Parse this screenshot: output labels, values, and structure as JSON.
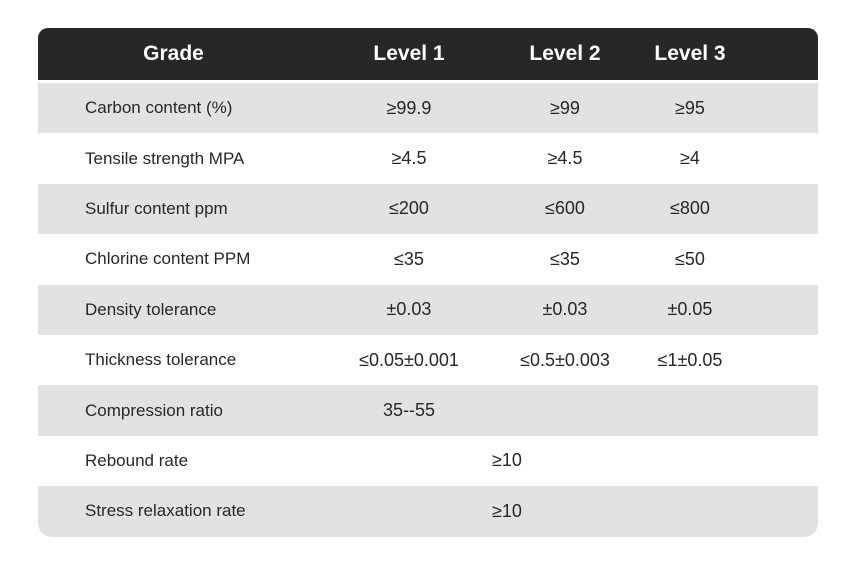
{
  "chart_data": {
    "type": "table",
    "columns": [
      "Grade",
      "Level 1",
      "Level 2",
      "Level 3"
    ],
    "rows": [
      {
        "label": "Carbon content (%)",
        "level1": "≥99.9",
        "level2": "≥99",
        "level3": "≥95"
      },
      {
        "label": "Tensile strength MPA",
        "level1": "≥4.5",
        "level2": "≥4.5",
        "level3": "≥4"
      },
      {
        "label": "Sulfur content ppm",
        "level1": "≤200",
        "level2": "≤600",
        "level3": "≤800"
      },
      {
        "label": "Chlorine content PPM",
        "level1": "≤35",
        "level2": "≤35",
        "level3": "≤50"
      },
      {
        "label": "Density tolerance",
        "level1": "±0.03",
        "level2": "±0.03",
        "level3": "±0.05"
      },
      {
        "label": "Thickness tolerance",
        "level1": "≤0.05±0.001",
        "level2": "≤0.5±0.003",
        "level3": "≤1±0.05"
      },
      {
        "label": "Compression ratio",
        "level1": "35--55",
        "level2": "",
        "level3": ""
      },
      {
        "label": "Rebound rate",
        "merged_value": "≥10"
      },
      {
        "label": "Stress relaxation rate",
        "merged_value": "≥10"
      }
    ],
    "layout_hints": {
      "striped": true,
      "stripe_rows": "odd rows (1,3,5,7,9) gray",
      "merged_rows": "Rebound rate and Stress relaxation rate have one value spanning the level columns"
    }
  },
  "colors": {
    "header_bg": "#272727",
    "header_text": "#ffffff",
    "stripe_bg": "#e2e2e2",
    "row_bg": "#ffffff",
    "body_text": "#2a2627"
  }
}
